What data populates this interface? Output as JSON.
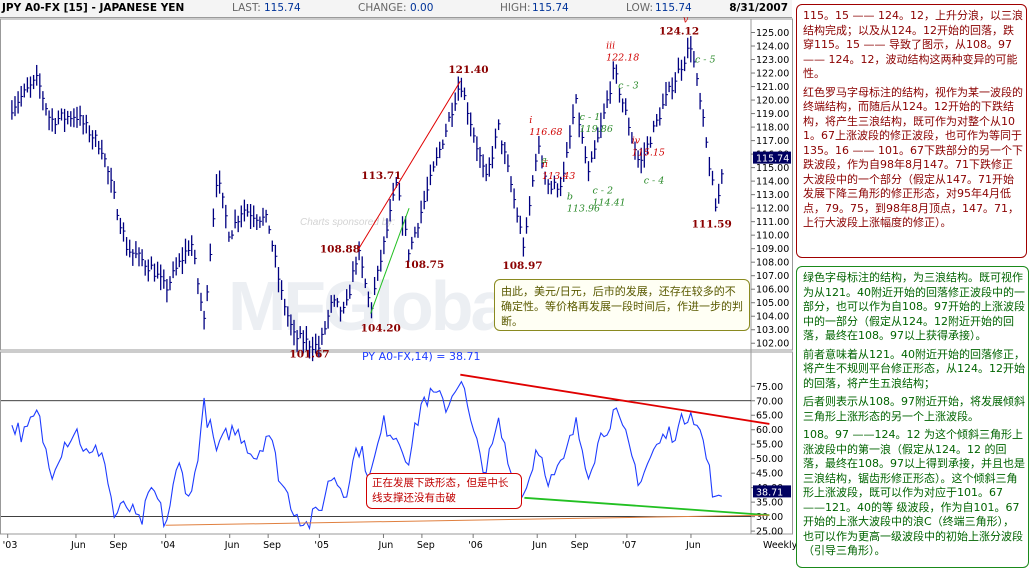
{
  "header": {
    "title": "JPY A0-FX [15] - JAPANESE YEN",
    "last_label": "LAST:",
    "last_value": "115.74",
    "change_label": "CHANGE:",
    "change_value": "0.00",
    "high_label": "HIGH:",
    "high_value": "115.74",
    "low_label": "LOW:",
    "low_value": "115.74",
    "date": "8/31/2007"
  },
  "watermark": {
    "text": "Charts sponsored by:",
    "logo_text": "MFGlobal"
  },
  "colors": {
    "price_line": "#000080",
    "rsi_line": "#1e3cff",
    "red_line": "#e00000",
    "green_line": "#22c022",
    "orange_line": "#e08040",
    "red_text": "#8b0000",
    "green_text": "#2a8a2a",
    "price_badge": "#000060"
  },
  "chart_data": [
    {
      "type": "line",
      "title": "",
      "xlabel": "",
      "ylabel": "",
      "ylim": [
        101.5,
        126
      ],
      "y_ticks": [
        "125.00",
        "124.00",
        "123.00",
        "122.00",
        "121.00",
        "120.00",
        "119.00",
        "118.00",
        "117.00",
        "116.00",
        "115.00",
        "114.00",
        "113.00",
        "112.00",
        "111.00",
        "110.00",
        "109.00",
        "108.00",
        "107.00",
        "106.00",
        "105.00",
        "104.00",
        "103.00",
        "102.00"
      ],
      "last_price_badge": "115.74",
      "pivots": [
        {
          "x": "2003-01",
          "y": 119.5
        },
        {
          "x": "2003-03",
          "y": 121.5
        },
        {
          "x": "2003-04",
          "y": 118.5
        },
        {
          "x": "2003-06",
          "y": 118.9
        },
        {
          "x": "2003-08",
          "y": 116.5
        },
        {
          "x": "2003-10",
          "y": 109.0
        },
        {
          "x": "2003-12",
          "y": 107.5
        },
        {
          "x": "2004-01",
          "y": 106.0
        },
        {
          "x": "2004-03",
          "y": 109.5
        },
        {
          "x": "2004-04",
          "y": 103.6
        },
        {
          "x": "2004-05",
          "y": 114.4
        },
        {
          "x": "2004-06",
          "y": 110.0
        },
        {
          "x": "2004-07",
          "y": 112.0
        },
        {
          "x": "2004-09",
          "y": 111.0
        },
        {
          "x": "2004-10",
          "y": 105.8
        },
        {
          "x": "2004-11",
          "y": 102.5
        },
        {
          "x": "2005-01",
          "y": 101.67
        },
        {
          "x": "2005-02",
          "y": 105.0
        },
        {
          "x": "2005-03",
          "y": 104.2
        },
        {
          "x": "2005-04",
          "y": 108.88
        },
        {
          "x": "2005-05",
          "y": 104.5
        },
        {
          "x": "2005-07",
          "y": 113.71
        },
        {
          "x": "2005-08",
          "y": 108.75
        },
        {
          "x": "2005-12",
          "y": 121.4
        },
        {
          "x": "2006-02",
          "y": 114.0
        },
        {
          "x": "2006-03",
          "y": 118.0
        },
        {
          "x": "2006-05",
          "y": 108.97
        },
        {
          "x": "2006-06",
          "y": 116.68
        },
        {
          "x": "2006-07",
          "y": 113.43
        },
        {
          "x": "2006-08",
          "y": 113.96
        },
        {
          "x": "2006-09",
          "y": 119.86
        },
        {
          "x": "2006-10",
          "y": 114.41
        },
        {
          "x": "2006-11",
          "y": 118.0
        },
        {
          "x": "2006-12",
          "y": 122.18
        },
        {
          "x": "2007-02",
          "y": 115.15
        },
        {
          "x": "2007-04",
          "y": 120.0
        },
        {
          "x": "2007-06",
          "y": 124.12
        },
        {
          "x": "2007-07",
          "y": 118.0
        },
        {
          "x": "2007-08",
          "y": 111.59
        },
        {
          "x": "2007-08-31",
          "y": 115.74
        }
      ],
      "price_labels": [
        {
          "text": "121.40",
          "x": "2005-12",
          "y": 121.4
        },
        {
          "text": "113.71",
          "x": "2005-07",
          "y": 113.71
        },
        {
          "text": "108.88",
          "x": "2005-04",
          "y": 108.88
        },
        {
          "text": "108.75",
          "x": "2005-08",
          "y": 108.75
        },
        {
          "text": "104.20",
          "x": "2005-05",
          "y": 104.2
        },
        {
          "text": "101.67",
          "x": "2005-01",
          "y": 101.67
        },
        {
          "text": "108.97",
          "x": "2006-05",
          "y": 108.97
        },
        {
          "text": "124.12",
          "x": "2007-06",
          "y": 124.12
        },
        {
          "text": "111.59",
          "x": "2007-08",
          "y": 111.59
        }
      ],
      "wave_labels": [
        {
          "text": "i",
          "x": "2006-06",
          "y": 116.68,
          "color": "red"
        },
        {
          "text": "116.68",
          "x": "2006-06",
          "y": 116.68,
          "color": "red"
        },
        {
          "text": "ii",
          "x": "2006-07",
          "y": 113.43,
          "color": "red"
        },
        {
          "text": "113.43",
          "x": "2006-07",
          "y": 113.43,
          "color": "red"
        },
        {
          "text": "iii",
          "x": "2006-12",
          "y": 122.18,
          "color": "red"
        },
        {
          "text": "122.18",
          "x": "2006-12",
          "y": 122.18,
          "color": "red"
        },
        {
          "text": "iv",
          "x": "2007-02",
          "y": 115.15,
          "color": "red"
        },
        {
          "text": "115.15",
          "x": "2007-02",
          "y": 115.15,
          "color": "red"
        },
        {
          "text": "v",
          "x": "2007-06",
          "y": 124.12,
          "color": "red"
        },
        {
          "text": "a",
          "x": "2006-06",
          "y": 116.68,
          "color": "green"
        },
        {
          "text": "b",
          "x": "2006-08",
          "y": 113.96,
          "color": "green"
        },
        {
          "text": "113.96",
          "x": "2006-08",
          "y": 113.96,
          "color": "green"
        },
        {
          "text": "c - 1",
          "x": "2006-09",
          "y": 119.86,
          "color": "green"
        },
        {
          "text": "119.86",
          "x": "2006-09",
          "y": 119.86,
          "color": "green"
        },
        {
          "text": "c - 2",
          "x": "2006-10",
          "y": 114.41,
          "color": "green"
        },
        {
          "text": "114.41",
          "x": "2006-10",
          "y": 114.41,
          "color": "green"
        },
        {
          "text": "c - 3",
          "x": "2006-12",
          "y": 122.18,
          "color": "green"
        },
        {
          "text": "c - 4",
          "x": "2007-02",
          "y": 115.15,
          "color": "green"
        },
        {
          "text": "c - 5",
          "x": "2007-06",
          "y": 124.12,
          "color": "green"
        }
      ],
      "trendlines": [
        {
          "color": "red",
          "from": {
            "x": "2005-04",
            "y": 108.88
          },
          "to": {
            "x": "2005-12",
            "y": 121.4
          }
        },
        {
          "color": "green",
          "from": {
            "x": "2005-05",
            "y": 104.2
          },
          "to": {
            "x": "2005-08",
            "y": 112.0
          }
        }
      ]
    },
    {
      "type": "line",
      "title": "PY A0-FX,14) = 38.71",
      "xlabel": "",
      "ylabel": "",
      "ylim": [
        24,
        82
      ],
      "y_ticks": [
        "75.00",
        "70.00",
        "65.00",
        "60.00",
        "55.00",
        "50.00",
        "45.00",
        "40.00",
        "35.00",
        "30.00",
        "25.00"
      ],
      "reference_levels": [
        70,
        30
      ],
      "last_value_badge": "38.71",
      "x_ticks": [
        "'03",
        "Jun",
        "Sep",
        "'04",
        "Jun",
        "Sep",
        "'05",
        "Jun",
        "Sep",
        "'06",
        "Jun",
        "Sep",
        "'07",
        "Jun",
        "Weekly"
      ],
      "pivots": [
        {
          "x": "2003-01",
          "y": 62
        },
        {
          "x": "2003-02",
          "y": 58
        },
        {
          "x": "2003-03",
          "y": 66
        },
        {
          "x": "2003-04",
          "y": 45
        },
        {
          "x": "2003-05",
          "y": 55
        },
        {
          "x": "2003-06",
          "y": 60
        },
        {
          "x": "2003-07",
          "y": 50
        },
        {
          "x": "2003-08",
          "y": 54
        },
        {
          "x": "2003-09",
          "y": 30
        },
        {
          "x": "2003-10",
          "y": 34
        },
        {
          "x": "2003-11",
          "y": 27
        },
        {
          "x": "2003-12",
          "y": 40
        },
        {
          "x": "2004-01",
          "y": 27
        },
        {
          "x": "2004-02",
          "y": 48
        },
        {
          "x": "2004-03",
          "y": 36
        },
        {
          "x": "2004-04",
          "y": 68
        },
        {
          "x": "2004-05",
          "y": 52
        },
        {
          "x": "2004-06",
          "y": 60
        },
        {
          "x": "2004-07",
          "y": 58
        },
        {
          "x": "2004-08",
          "y": 50
        },
        {
          "x": "2004-09",
          "y": 60
        },
        {
          "x": "2004-10",
          "y": 42
        },
        {
          "x": "2004-11",
          "y": 33
        },
        {
          "x": "2004-12",
          "y": 27
        },
        {
          "x": "2005-01",
          "y": 32
        },
        {
          "x": "2005-02",
          "y": 45
        },
        {
          "x": "2005-03",
          "y": 38
        },
        {
          "x": "2005-04",
          "y": 55
        },
        {
          "x": "2005-05",
          "y": 44
        },
        {
          "x": "2005-06",
          "y": 62
        },
        {
          "x": "2005-07",
          "y": 58
        },
        {
          "x": "2005-08",
          "y": 50
        },
        {
          "x": "2005-09",
          "y": 70
        },
        {
          "x": "2005-10",
          "y": 72
        },
        {
          "x": "2005-11",
          "y": 68
        },
        {
          "x": "2005-12",
          "y": 79
        },
        {
          "x": "2006-01",
          "y": 58
        },
        {
          "x": "2006-02",
          "y": 46
        },
        {
          "x": "2006-03",
          "y": 62
        },
        {
          "x": "2006-04",
          "y": 44
        },
        {
          "x": "2006-05",
          "y": 37
        },
        {
          "x": "2006-06",
          "y": 55
        },
        {
          "x": "2006-07",
          "y": 42
        },
        {
          "x": "2006-08",
          "y": 48
        },
        {
          "x": "2006-09",
          "y": 62
        },
        {
          "x": "2006-10",
          "y": 46
        },
        {
          "x": "2006-11",
          "y": 58
        },
        {
          "x": "2006-12",
          "y": 66
        },
        {
          "x": "2007-01",
          "y": 56
        },
        {
          "x": "2007-02",
          "y": 42
        },
        {
          "x": "2007-03",
          "y": 52
        },
        {
          "x": "2007-04",
          "y": 58
        },
        {
          "x": "2007-05",
          "y": 60
        },
        {
          "x": "2007-06",
          "y": 68
        },
        {
          "x": "2007-07",
          "y": 55
        },
        {
          "x": "2007-08",
          "y": 33
        },
        {
          "x": "2007-08-31",
          "y": 38.71
        }
      ],
      "trendlines": [
        {
          "color": "red",
          "from": {
            "x": "2005-12",
            "y": 79
          },
          "to": {
            "x": "2007-09",
            "y": 62
          }
        },
        {
          "color": "green",
          "from": {
            "x": "2006-05",
            "y": 36.5
          },
          "to": {
            "x": "2007-09",
            "y": 30.5
          }
        },
        {
          "color": "orange",
          "from": {
            "x": "2004-01",
            "y": 27
          },
          "to": {
            "x": "2007-09",
            "y": 30.5
          }
        }
      ]
    }
  ],
  "notes": {
    "red": [
      "115。15 —— 124。12，上升分浪，以三浪结构完成；以及从124。12开始的回落，跌穿115。15 —— 导致了图示，从108。97 —— 124。12，波动结构这两种变异的可能性。",
      "红色罗马字母标注的结构，视作为某一波段的终端结构，而随后从124。12开始的下跌结构，将产生三浪结构，既可作为对整个从101。67上涨波段的修正波段，也可作为等同于135。16 —— 101。67下跌部分的另一个下跌波段，作为自98年8月147。71下跌修正大波段中的一个部分（假定从147。71开始发展下降三角形的修正形态，对95年4月低点，79。75，到98年8月顶点，147。71，上行大波段上涨幅度的修正）。"
    ],
    "green": [
      "绿色字母标注的结构，为三浪结构。既可视作为从121。40附近开始的回落修正波段中的一部分，也可以作为自108。97开始的上涨波段中的一部分（假定从124。12附近开始的回落，最终在108。97以上获得承接）。",
      "前者意味着从121。40附近开始的回落修正，将产生不规则平台修正形态，从124。12开始的回落，将产生五浪结构；",
      "后者则表示从108。97附近开始，将发展倾斜三角形上涨形态的另一个上涨波段。",
      "108。97 ——124。12 为这个倾斜三角形上涨波段中的第一浪（假定从124。12 的回落，最终在108。97以上得到承接，并且也是三浪结构，锯齿形修正形态）。这个倾斜三角形上涨波段，既可以作为对应于101。67 ——121。40的等 级波段，作为自101。67开始的上涨大波段中的浪C（终端三角形），也可以作为更高一级波段中的初始上涨分波段（引导三角形）。"
    ],
    "olive": "由此，美元/日元，后市的发展，还存在较多的不确定性。等价格再发展一段时间后，作进一步的判断。",
    "rsi": "正在发展下跌形态，但是中长线支撑还没有击破"
  }
}
